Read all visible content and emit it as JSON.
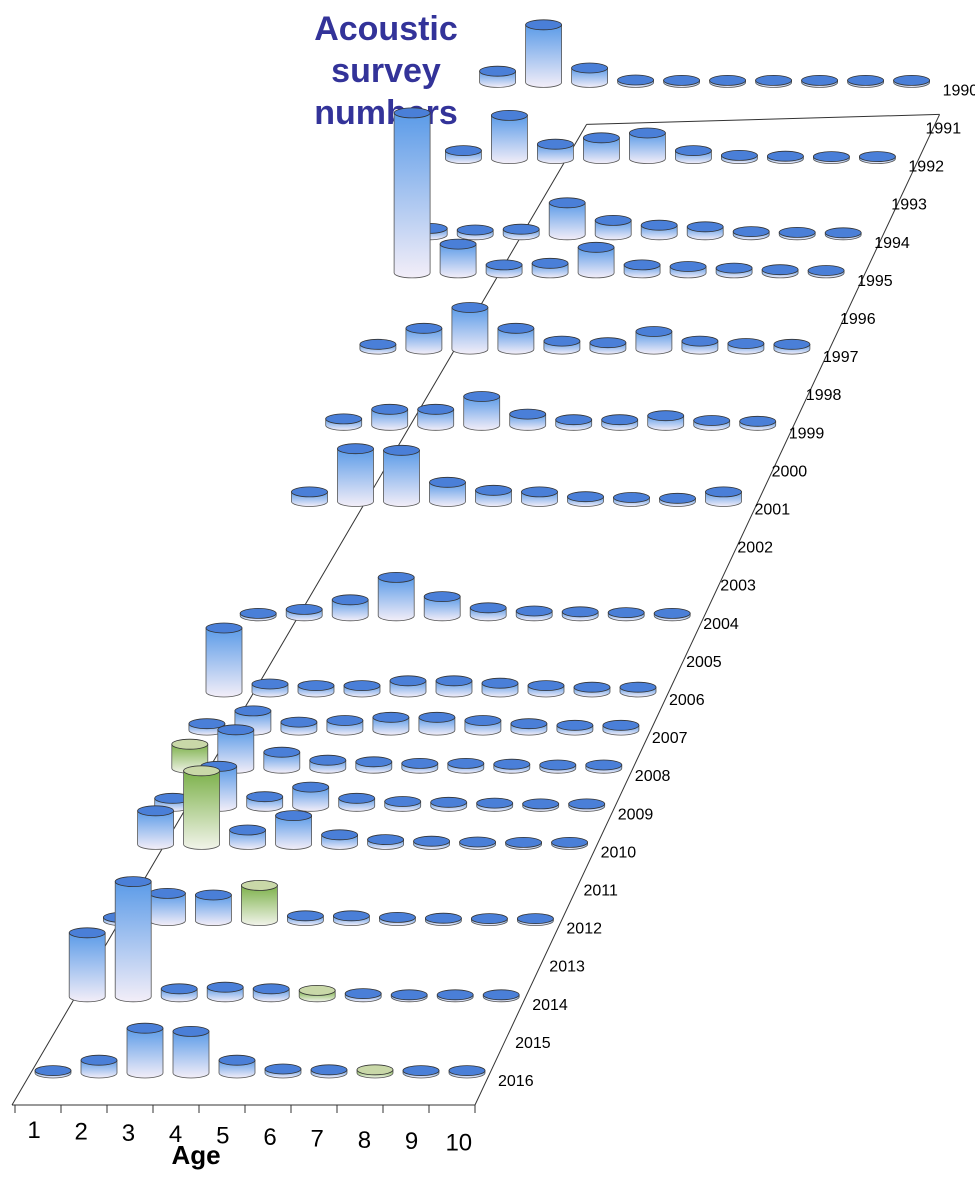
{
  "chart_data": {
    "type": "bar",
    "subtype": "3d-cylinder",
    "title_lines": [
      "Acoustic",
      "survey",
      "numbers"
    ],
    "xlabel": "Age",
    "ylabel": "",
    "categories": [
      "1",
      "2",
      "3",
      "4",
      "5",
      "6",
      "7",
      "8",
      "9",
      "10"
    ],
    "years": [
      "1990",
      "1991",
      "1992",
      "1993",
      "1994",
      "1995",
      "1996",
      "1997",
      "1998",
      "1999",
      "2000",
      "2001",
      "2002",
      "2003",
      "2004",
      "2005",
      "2006",
      "2007",
      "2008",
      "2009",
      "2010",
      "2011",
      "2012",
      "2013",
      "2014",
      "2015",
      "2016"
    ],
    "series": [
      {
        "year": "1990",
        "values": [
          0.7,
          3.6,
          0.9,
          0.15,
          0.12,
          0.1,
          0.08,
          0.06,
          0.05,
          0.05
        ]
      },
      {
        "year": "1991",
        "values": [
          0,
          0,
          0,
          0,
          0,
          0,
          0,
          0,
          0,
          0
        ]
      },
      {
        "year": "1992",
        "values": [
          0.5,
          2.7,
          0.9,
          1.3,
          1.6,
          0.5,
          0.2,
          0.15,
          0.12,
          0.1
        ]
      },
      {
        "year": "1993",
        "values": [
          0,
          0,
          0,
          0,
          0,
          0,
          0,
          0,
          0,
          0
        ]
      },
      {
        "year": "1994",
        "values": [
          0.4,
          0.3,
          0.35,
          2.0,
          0.9,
          0.6,
          0.5,
          0.2,
          0.15,
          0.12
        ]
      },
      {
        "year": "1995",
        "values": [
          10.0,
          1.8,
          0.5,
          0.6,
          1.6,
          0.5,
          0.4,
          0.3,
          0.2,
          0.15
        ]
      },
      {
        "year": "1996",
        "values": [
          0,
          0,
          0,
          0,
          0,
          0,
          0,
          0,
          0,
          0
        ]
      },
      {
        "year": "1997",
        "values": [
          0.3,
          1.3,
          2.6,
          1.3,
          0.5,
          0.4,
          1.1,
          0.5,
          0.35,
          0.3
        ]
      },
      {
        "year": "1998",
        "values": [
          0,
          0,
          0,
          0,
          0,
          0,
          0,
          0,
          0,
          0
        ]
      },
      {
        "year": "1999",
        "values": [
          0.4,
          1.0,
          1.0,
          1.8,
          0.7,
          0.35,
          0.35,
          0.6,
          0.3,
          0.25
        ]
      },
      {
        "year": "2000",
        "values": [
          0,
          0,
          0,
          0,
          0,
          0,
          0,
          0,
          0,
          0
        ]
      },
      {
        "year": "2001",
        "values": [
          0.6,
          3.3,
          3.2,
          1.2,
          0.7,
          0.6,
          0.3,
          0.25,
          0.2,
          0.6
        ]
      },
      {
        "year": "2002",
        "values": [
          0,
          0,
          0,
          0,
          0,
          0,
          0,
          0,
          0,
          0
        ]
      },
      {
        "year": "2003",
        "values": [
          0,
          0,
          0,
          0,
          0,
          0,
          0,
          0,
          0,
          0
        ]
      },
      {
        "year": "2004",
        "values": [
          0.15,
          0.4,
          1.0,
          2.4,
          1.2,
          0.5,
          0.3,
          0.25,
          0.2,
          0.15
        ]
      },
      {
        "year": "2005",
        "values": [
          0,
          0,
          0,
          0,
          0,
          0,
          0,
          0,
          0,
          0
        ]
      },
      {
        "year": "2006",
        "values": [
          4.0,
          0.5,
          0.4,
          0.4,
          0.7,
          0.7,
          0.55,
          0.4,
          0.3,
          0.3
        ]
      },
      {
        "year": "2007",
        "values": [
          0.4,
          1.2,
          0.5,
          0.6,
          0.8,
          0.8,
          0.6,
          0.4,
          0.3,
          0.3
        ]
      },
      {
        "year": "2008",
        "values": [
          1.5,
          2.4,
          1.0,
          0.5,
          0.4,
          0.3,
          0.3,
          0.25,
          0.2,
          0.2
        ]
      },
      {
        "year": "2009",
        "values": [
          0.5,
          2.5,
          0.6,
          1.2,
          0.5,
          0.3,
          0.25,
          0.2,
          0.15,
          0.15
        ]
      },
      {
        "year": "2010",
        "values": [
          2.1,
          4.6,
          0.9,
          1.8,
          0.6,
          0.3,
          0.2,
          0.15,
          0.1,
          0.1
        ]
      },
      {
        "year": "2011",
        "values": [
          0,
          0,
          0,
          0,
          0,
          0,
          0,
          0,
          0,
          0
        ]
      },
      {
        "year": "2012",
        "values": [
          0.2,
          1.7,
          1.6,
          2.2,
          0.3,
          0.3,
          0.2,
          0.15,
          0.1,
          0.1
        ]
      },
      {
        "year": "2013",
        "values": [
          0,
          0,
          0,
          0,
          0,
          0,
          0,
          0,
          0,
          0
        ]
      },
      {
        "year": "2014",
        "values": [
          4.0,
          7.2,
          0.5,
          0.6,
          0.5,
          0.4,
          0.2,
          0.1,
          0.1,
          0.1
        ]
      },
      {
        "year": "2015",
        "values": [
          0,
          0,
          0,
          0,
          0,
          0,
          0,
          0,
          0,
          0
        ]
      },
      {
        "year": "2016",
        "values": [
          0.15,
          0.8,
          2.8,
          2.6,
          0.8,
          0.25,
          0.2,
          0.2,
          0.15,
          0.15
        ]
      }
    ],
    "highlighted_bars": [
      {
        "year": "2008",
        "age": "1"
      },
      {
        "year": "2010",
        "age": "2"
      },
      {
        "year": "2012",
        "age": "4"
      },
      {
        "year": "2014",
        "age": "6"
      },
      {
        "year": "2016",
        "age": "8"
      }
    ],
    "colors": {
      "bar_top": "#4a7fd8",
      "bar_side": "#5b9be8",
      "bar_base": "#f3eef8",
      "highlight_top": "#c9d8a8",
      "highlight_side": "#7cb14a",
      "axis": "#333333",
      "title": "#333399"
    },
    "grid": false
  }
}
